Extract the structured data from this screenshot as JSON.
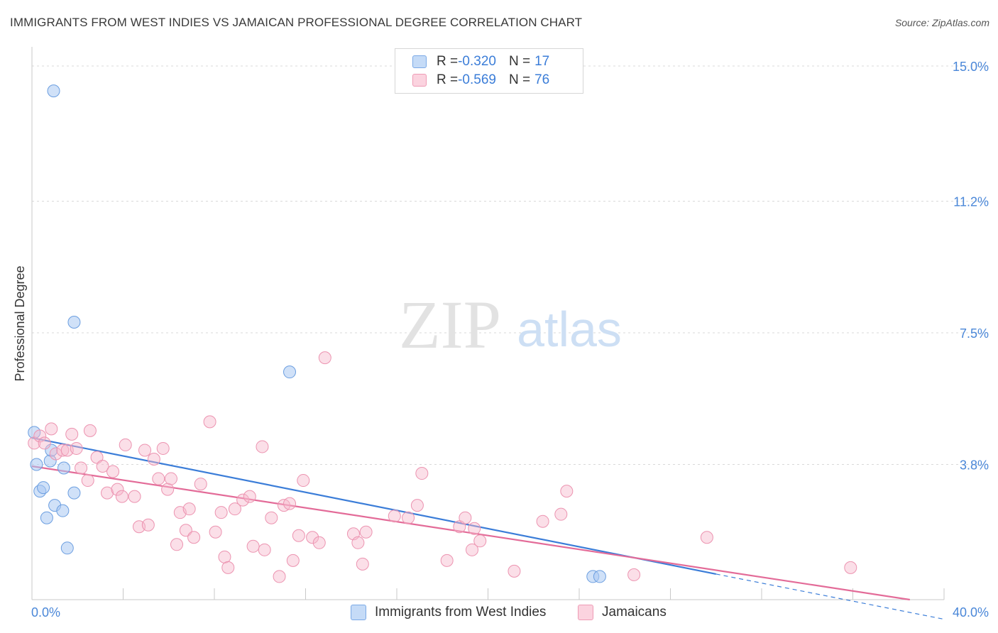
{
  "title": "IMMIGRANTS FROM WEST INDIES VS JAMAICAN PROFESSIONAL DEGREE CORRELATION CHART",
  "source": "Source: ZipAtlas.com",
  "watermark": {
    "zip": "ZIP",
    "atlas": "atlas"
  },
  "legend": {
    "rows": [
      {
        "r_label": "R = ",
        "r_value": "-0.320",
        "n_label": "N = ",
        "n_value": "17"
      },
      {
        "r_label": "R = ",
        "r_value": "-0.569",
        "n_label": "N = ",
        "n_value": "76"
      }
    ]
  },
  "chart_data": {
    "type": "scatter",
    "title": "IMMIGRANTS FROM WEST INDIES VS JAMAICAN PROFESSIONAL DEGREE CORRELATION CHART",
    "xlabel": "",
    "ylabel": "Professional Degree",
    "xlim": [
      0,
      40
    ],
    "ylim": [
      0,
      15.3
    ],
    "x_tick_labels": [
      "0.0%",
      "40.0%"
    ],
    "y_ticks": [
      3.8,
      7.5,
      11.2,
      15.0
    ],
    "y_tick_labels": [
      "3.8%",
      "7.5%",
      "11.2%",
      "15.0%"
    ],
    "grid": "horizontal dashed",
    "legend_position": "top-center",
    "colors": {
      "west_indies": "#a9c8f2",
      "west_indies_line": "#3b7dd8",
      "jamaicans": "#f7b8cb",
      "jamaicans_line": "#e36b98"
    },
    "series": [
      {
        "name": "Immigrants from West Indies",
        "color": "#a9c8f2",
        "trend": {
          "x": [
            0,
            30
          ],
          "y": [
            4.55,
            0.72
          ],
          "dashed_to": [
            40,
            -0.55
          ]
        },
        "points": [
          {
            "x": 0.1,
            "y": 4.7
          },
          {
            "x": 0.2,
            "y": 3.8
          },
          {
            "x": 0.35,
            "y": 3.05
          },
          {
            "x": 0.5,
            "y": 3.15
          },
          {
            "x": 0.65,
            "y": 2.3
          },
          {
            "x": 0.8,
            "y": 3.9
          },
          {
            "x": 0.85,
            "y": 4.2
          },
          {
            "x": 1.0,
            "y": 2.65
          },
          {
            "x": 1.35,
            "y": 2.5
          },
          {
            "x": 1.4,
            "y": 3.7
          },
          {
            "x": 1.55,
            "y": 1.45
          },
          {
            "x": 1.85,
            "y": 3.0
          },
          {
            "x": 0.95,
            "y": 14.3
          },
          {
            "x": 1.85,
            "y": 7.8
          },
          {
            "x": 11.3,
            "y": 6.4
          },
          {
            "x": 24.6,
            "y": 0.65
          },
          {
            "x": 24.9,
            "y": 0.65
          }
        ]
      },
      {
        "name": "Jamaicans",
        "color": "#f7b8cb",
        "trend": {
          "x": [
            0,
            38.5
          ],
          "y": [
            3.75,
            0.0
          ]
        },
        "points": [
          {
            "x": 0.1,
            "y": 4.4
          },
          {
            "x": 0.35,
            "y": 4.6
          },
          {
            "x": 0.55,
            "y": 4.4
          },
          {
            "x": 0.85,
            "y": 4.8
          },
          {
            "x": 1.05,
            "y": 4.1
          },
          {
            "x": 1.35,
            "y": 4.2
          },
          {
            "x": 1.55,
            "y": 4.2
          },
          {
            "x": 1.75,
            "y": 4.65
          },
          {
            "x": 1.95,
            "y": 4.25
          },
          {
            "x": 2.15,
            "y": 3.7
          },
          {
            "x": 2.45,
            "y": 3.35
          },
          {
            "x": 2.55,
            "y": 4.75
          },
          {
            "x": 2.85,
            "y": 4.0
          },
          {
            "x": 3.1,
            "y": 3.75
          },
          {
            "x": 3.3,
            "y": 3.0
          },
          {
            "x": 3.55,
            "y": 3.6
          },
          {
            "x": 3.75,
            "y": 3.1
          },
          {
            "x": 3.95,
            "y": 2.9
          },
          {
            "x": 4.1,
            "y": 4.35
          },
          {
            "x": 4.5,
            "y": 2.9
          },
          {
            "x": 4.7,
            "y": 2.05
          },
          {
            "x": 4.95,
            "y": 4.2
          },
          {
            "x": 5.1,
            "y": 2.1
          },
          {
            "x": 5.35,
            "y": 3.95
          },
          {
            "x": 5.55,
            "y": 3.4
          },
          {
            "x": 5.75,
            "y": 4.25
          },
          {
            "x": 5.95,
            "y": 3.1
          },
          {
            "x": 6.1,
            "y": 3.4
          },
          {
            "x": 6.35,
            "y": 1.55
          },
          {
            "x": 6.5,
            "y": 2.45
          },
          {
            "x": 6.75,
            "y": 1.95
          },
          {
            "x": 6.9,
            "y": 2.55
          },
          {
            "x": 7.1,
            "y": 1.75
          },
          {
            "x": 7.4,
            "y": 3.25
          },
          {
            "x": 7.8,
            "y": 5.0
          },
          {
            "x": 8.05,
            "y": 1.9
          },
          {
            "x": 8.3,
            "y": 2.45
          },
          {
            "x": 8.45,
            "y": 1.2
          },
          {
            "x": 8.6,
            "y": 0.9
          },
          {
            "x": 8.9,
            "y": 2.55
          },
          {
            "x": 9.25,
            "y": 2.8
          },
          {
            "x": 9.55,
            "y": 2.9
          },
          {
            "x": 9.7,
            "y": 1.5
          },
          {
            "x": 10.1,
            "y": 4.3
          },
          {
            "x": 10.2,
            "y": 1.4
          },
          {
            "x": 10.5,
            "y": 2.3
          },
          {
            "x": 10.85,
            "y": 0.65
          },
          {
            "x": 11.05,
            "y": 2.65
          },
          {
            "x": 11.3,
            "y": 2.7
          },
          {
            "x": 11.45,
            "y": 1.1
          },
          {
            "x": 11.7,
            "y": 1.8
          },
          {
            "x": 11.9,
            "y": 3.35
          },
          {
            "x": 12.3,
            "y": 1.75
          },
          {
            "x": 12.6,
            "y": 1.6
          },
          {
            "x": 12.85,
            "y": 6.8
          },
          {
            "x": 14.1,
            "y": 1.85
          },
          {
            "x": 14.3,
            "y": 1.6
          },
          {
            "x": 14.5,
            "y": 1.0
          },
          {
            "x": 14.65,
            "y": 1.9
          },
          {
            "x": 15.9,
            "y": 2.35
          },
          {
            "x": 16.5,
            "y": 2.3
          },
          {
            "x": 16.9,
            "y": 2.65
          },
          {
            "x": 17.1,
            "y": 3.55
          },
          {
            "x": 18.2,
            "y": 1.1
          },
          {
            "x": 18.75,
            "y": 2.05
          },
          {
            "x": 19.0,
            "y": 2.3
          },
          {
            "x": 19.3,
            "y": 1.4
          },
          {
            "x": 19.4,
            "y": 2.0
          },
          {
            "x": 19.65,
            "y": 1.65
          },
          {
            "x": 21.15,
            "y": 0.8
          },
          {
            "x": 22.4,
            "y": 2.2
          },
          {
            "x": 23.2,
            "y": 2.4
          },
          {
            "x": 23.45,
            "y": 3.05
          },
          {
            "x": 26.4,
            "y": 0.7
          },
          {
            "x": 29.6,
            "y": 1.75
          },
          {
            "x": 35.9,
            "y": 0.9
          }
        ]
      }
    ]
  },
  "bottom_legend": [
    {
      "label": "Immigrants from West Indies"
    },
    {
      "label": "Jamaicans"
    }
  ]
}
